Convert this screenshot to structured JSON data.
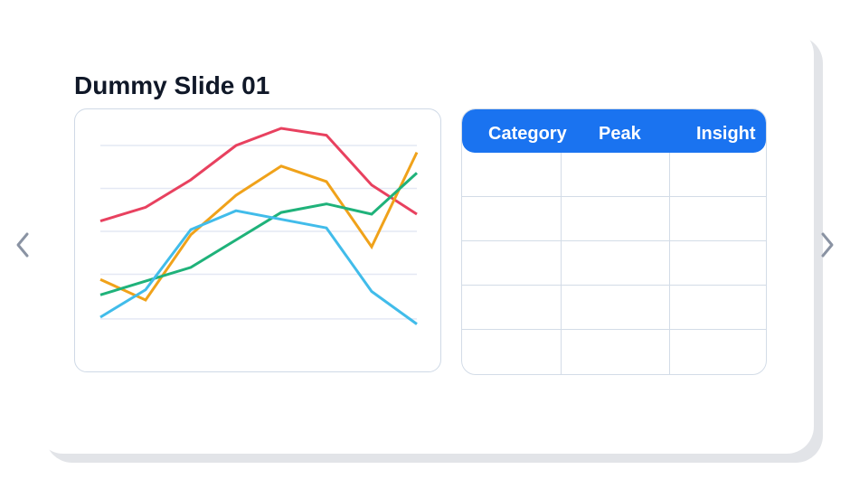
{
  "slide": {
    "title": "Dummy Slide 01"
  },
  "navigation": {
    "prev_icon": "chevron-left-icon",
    "next_icon": "chevron-right-icon"
  },
  "colors": {
    "table_header_bg": "#1a73f0",
    "grid": "#e4e8f4",
    "border": "#cfd9e6"
  },
  "chart_data": {
    "type": "line",
    "title": "",
    "xlabel": "",
    "ylabel": "",
    "x": [
      1,
      2,
      3,
      4,
      5,
      6,
      7,
      8
    ],
    "ylim": [
      0,
      100
    ],
    "grid": true,
    "legend": "none",
    "series": [
      {
        "color": "#e8415f",
        "values": [
          56,
          64,
          80,
          100,
          110,
          106,
          77,
          60
        ]
      },
      {
        "color": "#f0a21a",
        "values": [
          22,
          10,
          48,
          71,
          88,
          79,
          41,
          96
        ]
      },
      {
        "color": "#1fb27a",
        "values": [
          13,
          21,
          29,
          45,
          61,
          66,
          60,
          84
        ]
      },
      {
        "color": "#41bcea",
        "values": [
          0,
          16,
          51,
          62,
          57,
          52,
          15,
          -4
        ]
      }
    ]
  },
  "table": {
    "headers": [
      "Category",
      "Peak",
      "Insight"
    ],
    "rows": [
      [
        "",
        "",
        ""
      ],
      [
        "",
        "",
        ""
      ],
      [
        "",
        "",
        ""
      ],
      [
        "",
        "",
        ""
      ],
      [
        "",
        "",
        ""
      ]
    ]
  }
}
